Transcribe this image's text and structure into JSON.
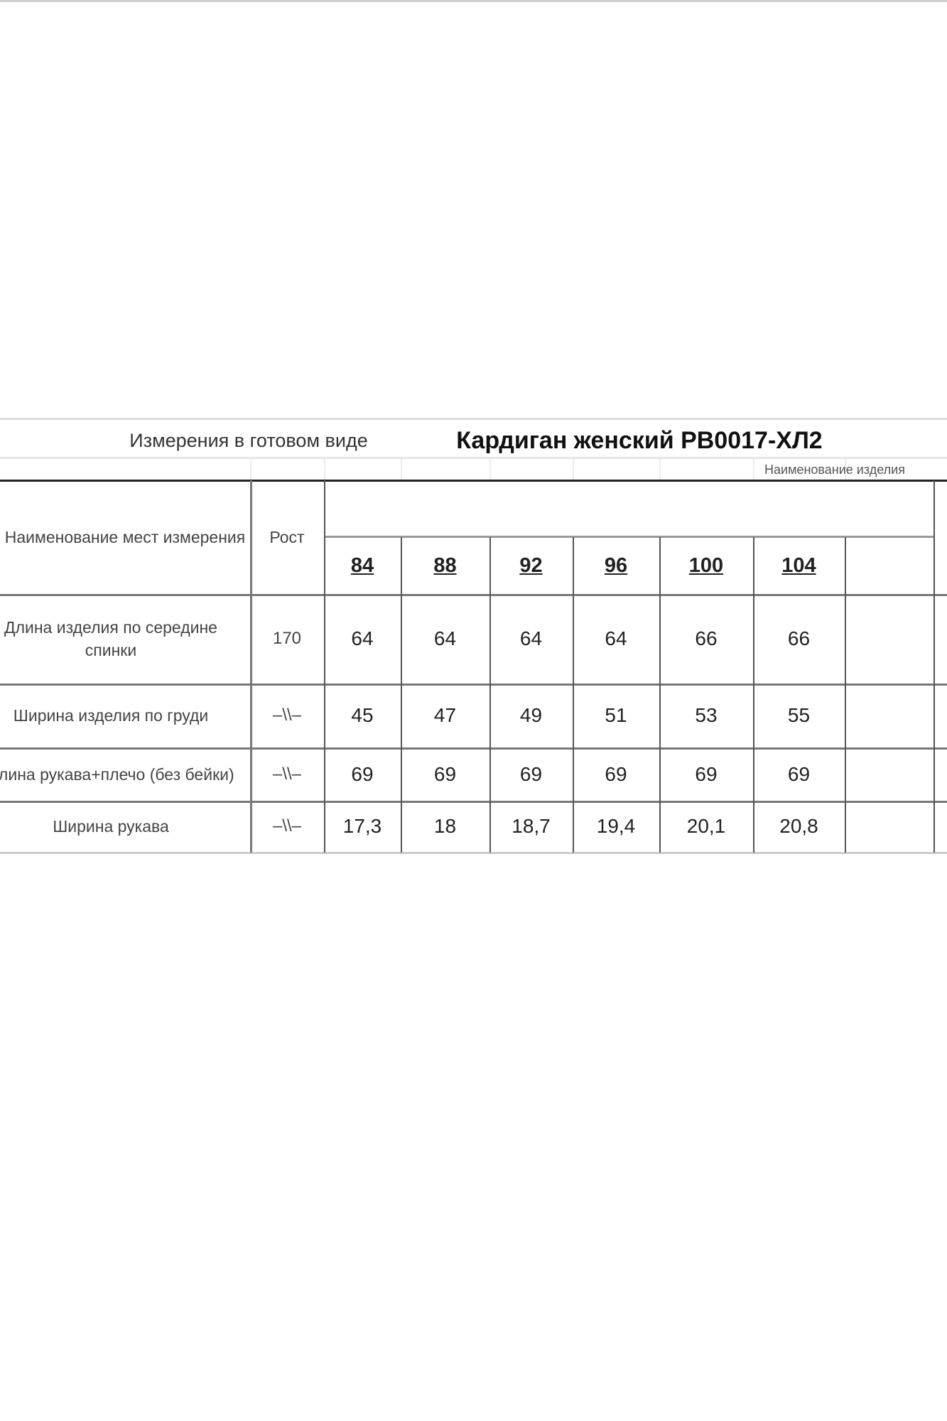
{
  "header": {
    "left_caption": "Измерения в готовом виде",
    "product_title": "Кардиган женский РВ0017-ХЛ2",
    "product_name_caption": "Наименование изделия"
  },
  "table": {
    "col_measure": "Наименование мест измерения",
    "col_height": "Рост",
    "sizes": [
      "84",
      "88",
      "92",
      "96",
      "100",
      "104"
    ],
    "rows": [
      {
        "name": "Длина изделия по середине спинки",
        "height": "170",
        "values": [
          "64",
          "64",
          "64",
          "64",
          "66",
          "66"
        ]
      },
      {
        "name": "Ширина изделия по груди",
        "height": "–\\\\–",
        "values": [
          "45",
          "47",
          "49",
          "51",
          "53",
          "55"
        ]
      },
      {
        "name": "Длина рукава+плечо (без бейки)",
        "height": "–\\\\–",
        "values": [
          "69",
          "69",
          "69",
          "69",
          "69",
          "69"
        ]
      },
      {
        "name": "Ширина рукава",
        "height": "–\\\\–",
        "values": [
          "17,3",
          "18",
          "18,7",
          "19,4",
          "20,1",
          "20,8"
        ]
      }
    ]
  }
}
